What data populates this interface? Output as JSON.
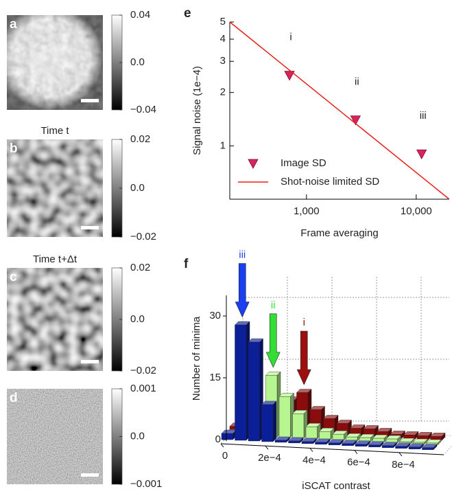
{
  "chart_data": [
    {
      "type": "image",
      "label": "a",
      "clim": [
        -0.04,
        0.04
      ],
      "cticks": [
        0.04,
        {
          "value": 0,
          "label": "0.0"
        },
        {
          "value": -0.04,
          "label": "−0.04"
        }
      ]
    },
    {
      "type": "image",
      "label": "b",
      "title": "Time t",
      "clim": [
        -0.02,
        0.02
      ],
      "cticks": [
        0.02,
        {
          "value": 0,
          "label": "0.0"
        },
        {
          "value": -0.02,
          "label": "−0.02"
        }
      ]
    },
    {
      "type": "image",
      "label": "c",
      "title": "Time t+Δt",
      "clim": [
        -0.02,
        0.02
      ],
      "cticks": [
        0.02,
        {
          "value": 0,
          "label": "0.0"
        },
        {
          "value": -0.02,
          "label": "−0.02"
        }
      ]
    },
    {
      "type": "image",
      "label": "d",
      "clim": [
        -0.001,
        0.001
      ],
      "cticks": [
        0.001,
        {
          "value": 0,
          "label": "0.0"
        },
        {
          "value": -0.001,
          "label": "−0.001"
        }
      ]
    },
    {
      "type": "scatter",
      "label": "e",
      "xlabel": "Frame averaging",
      "ylabel": "Signal noise (1e−4)",
      "xscale": "log",
      "yscale": "log",
      "xlim": [
        200,
        20000
      ],
      "ylim": [
        0.5,
        5
      ],
      "xticks": [
        {
          "value": 1000,
          "label": "1,000"
        },
        {
          "value": 10000,
          "label": "10,000"
        }
      ],
      "yticks": [
        1,
        2,
        3,
        4,
        5
      ],
      "legend": "lower left",
      "annotations": [
        "i",
        "ii",
        "iii"
      ],
      "series": [
        {
          "name": "Image SD",
          "kind": "scatter",
          "color": "#d8245c",
          "x": [
            700,
            2800,
            11200
          ],
          "values": [
            2.5,
            1.4,
            0.9
          ]
        },
        {
          "name": "Shot-noise limited SD",
          "kind": "line",
          "color": "#e8201c",
          "x": [
            200,
            20000
          ],
          "values": [
            5,
            0.5
          ]
        }
      ]
    },
    {
      "type": "histogram3d",
      "label": "f",
      "xlabel": "iSCAT contrast",
      "ylabel": "Number of minima",
      "xlim": [
        0,
        0.001
      ],
      "ylim": [
        0,
        35
      ],
      "xticks": [
        0,
        {
          "value": 0.0002,
          "label": "2e−4"
        },
        {
          "value": 0.0004,
          "label": "4e−4"
        },
        {
          "value": 0.0006,
          "label": "6e−4"
        },
        {
          "value": 0.0008,
          "label": "8e−4"
        }
      ],
      "yticks": [
        0,
        15,
        30
      ],
      "grid": true,
      "bins": [
        0,
        6e-05,
        0.00012,
        0.00018,
        0.00024,
        0.0003,
        0.00036,
        0.00042,
        0.00048,
        0.00054,
        0.0006,
        0.00066,
        0.00072,
        0.00078,
        0.00084,
        0.0009,
        0.00096
      ],
      "series": [
        {
          "name": "iii",
          "label": "iii",
          "color": "#0b1f99",
          "arrow_color": "#1a3ff0",
          "values": [
            1.5,
            28,
            24,
            9,
            0.5,
            0.5,
            0.5,
            0.5,
            0.5,
            0.5,
            0.5,
            0.5,
            0.5,
            0.5,
            0.5,
            0.5
          ]
        },
        {
          "name": "ii",
          "label": "ii",
          "color": "#b6f58f",
          "arrow_color": "#33dd33",
          "values": [
            0.5,
            1,
            4,
            15,
            10,
            6,
            3,
            2,
            1.5,
            1,
            1,
            1,
            1,
            0.5,
            0.5,
            0.5
          ]
        },
        {
          "name": "i",
          "label": "i",
          "color": "#8a0c0c",
          "arrow_color": "#9e0f0f",
          "values": [
            1,
            1,
            1,
            3,
            8,
            10,
            6,
            4,
            3,
            2,
            2,
            1.5,
            1,
            1,
            1,
            1
          ]
        }
      ]
    }
  ]
}
